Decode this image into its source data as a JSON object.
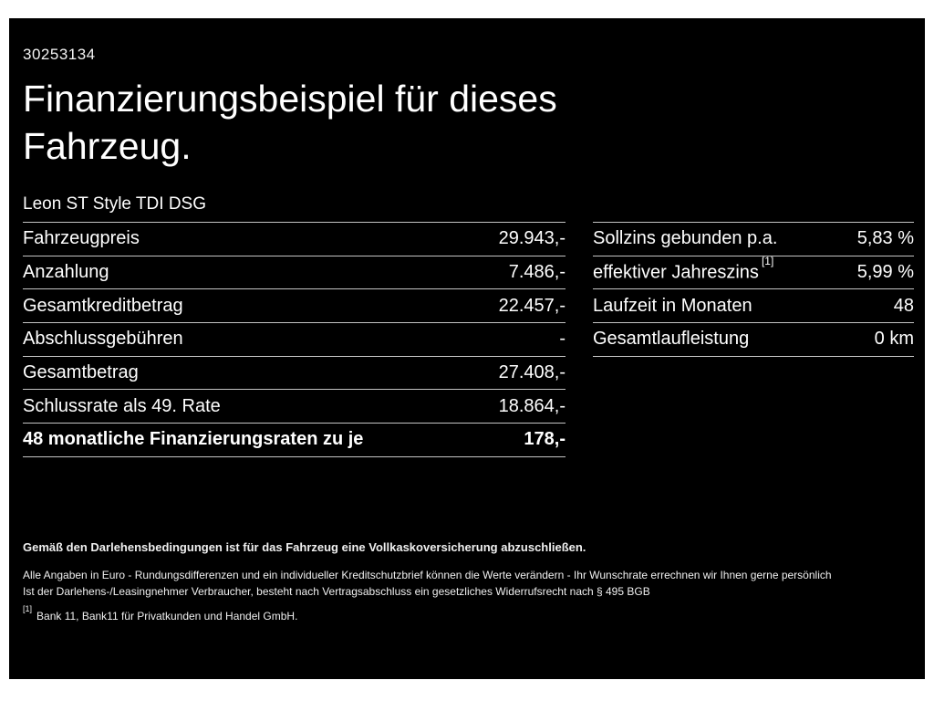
{
  "colors": {
    "frame": "#ffffff",
    "background": "#000000",
    "text": "#ffffff",
    "divider": "#c4c4c4"
  },
  "page": {
    "id": "30253134",
    "title_line1": "Finanzierungsbeispiel für dieses",
    "title_line2": "Fahrzeug.",
    "subtitle": "Leon ST Style TDI DSG"
  },
  "left_table": {
    "rows": [
      {
        "label": "Fahrzeugpreis",
        "value": "29.943,-"
      },
      {
        "label": "Anzahlung",
        "value": "7.486,-"
      },
      {
        "label": "Gesamtkreditbetrag",
        "value": "22.457,-"
      },
      {
        "label": "Abschlussgebühren",
        "value": "-"
      },
      {
        "label": "Gesamtbetrag",
        "value": "27.408,-"
      },
      {
        "label": "Schlussrate als 49. Rate",
        "value": "18.864,-"
      },
      {
        "label": "48 monatliche Finanzierungsraten zu je",
        "value": "178,-"
      }
    ]
  },
  "right_table": {
    "rows": [
      {
        "label": "Sollzins gebunden p.a.",
        "sup": "",
        "value": "5,83 %"
      },
      {
        "label": "effektiver Jahreszins",
        "sup": "[1]",
        "value": "5,99 %"
      },
      {
        "label": "Laufzeit in Monaten",
        "sup": "",
        "value": "48"
      },
      {
        "label": "Gesamtlaufleistung",
        "sup": "",
        "value": "0 km"
      }
    ]
  },
  "footnotes": {
    "bold_line": "Gemäß den Darlehensbedingungen ist für das Fahrzeug eine Vollkaskoversicherung abzuschließen.",
    "line2": "Alle Angaben in Euro - Rundungsdifferenzen und ein individueller Kreditschutzbrief können die Werte verändern - Ihr Wunschrate errechnen wir Ihnen gerne persönlich",
    "line3": "Ist der Darlehens-/Leasingnehmer Verbraucher, besteht nach Vertragsabschluss ein gesetzliches Widerrufsrecht nach § 495 BGB",
    "marker": "[1]",
    "note": "Bank 11, Bank11 für Privatkunden und Handel GmbH."
  }
}
